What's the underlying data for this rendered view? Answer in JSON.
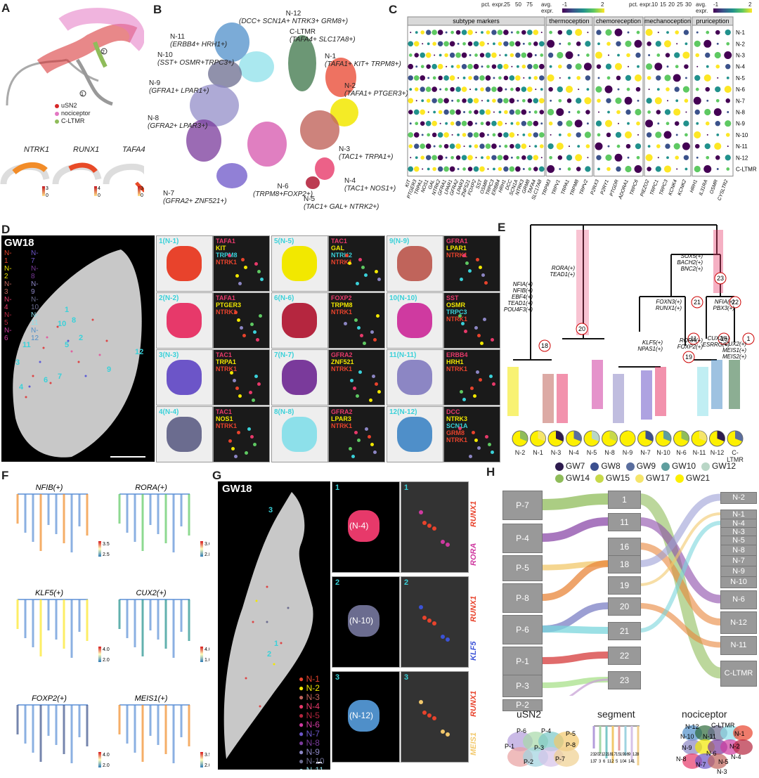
{
  "panels": {
    "A": "A",
    "B": "B",
    "C": "C",
    "D": "D",
    "E": "E",
    "F": "F",
    "G": "G",
    "H": "H"
  },
  "a": {
    "legend": [
      "uSN2",
      "nociceptor",
      "C-LTMR"
    ],
    "legend_colors": [
      "#d62728",
      "#e377c2",
      "#8fbc5a"
    ],
    "markers": [
      1,
      2
    ],
    "genes": [
      "NTRK1",
      "RUNX1",
      "TAFA4"
    ],
    "scale_max": [
      "3",
      "4",
      "3"
    ],
    "scale_min": "0"
  },
  "b": {
    "labels": {
      "n12": "N-12",
      "n12d": "(DCC+ SCN1A+ NTRK3+ GRM8+)",
      "n11": "N-11",
      "n11d": "(ERBB4+ HRH1+)",
      "n10": "N-10",
      "n10d": "(SST+ OSMR+TRPC3+)",
      "n9": "N-9",
      "n9d": "(GFRA1+ LPAR1+)",
      "n8": "N-8",
      "n8d": "(GFRA2+ LPAR3+)",
      "n7": "N-7",
      "n7d": "(GFRA2+ ZNF521+)",
      "n6": "N-6",
      "n6d": "(TRPM8+FOXP2+)",
      "n5": "N-5",
      "n5d": "(TAC1+ GAL+ NTRK2+)",
      "n4": "N-4",
      "n4d": "(TAC1+ NOS1+)",
      "n3": "N-3",
      "n3d": "(TAC1+ TRPA1+)",
      "n2": "N-2",
      "n2d": "(TAFA1+ PTGER3+)",
      "n1": "N-1",
      "n1d": "(TAFA1+ KIT+ TRPM8+)",
      "cl": "C-LTMR",
      "cld": "(TAFA4+ SLC17A8+)"
    }
  },
  "c": {
    "legend_pct_a": "pct. expr.",
    "legend_pct_vals_a": [
      "25",
      "50",
      "75"
    ],
    "legend_avg": "avg. expr.",
    "legend_avg_min": "-1",
    "legend_avg_max": "2",
    "legend_pct_b": "pct. expr.",
    "legend_pct_vals_b": [
      "10",
      "15",
      "20",
      "25",
      "30"
    ],
    "groups": [
      "subtype markers",
      "thermoception",
      "chemoreception",
      "mechanoception",
      "pruriception"
    ],
    "rows": [
      "N-1",
      "N-2",
      "N-3",
      "N-4",
      "N-5",
      "N-6",
      "N-7",
      "N-8",
      "N-9",
      "N-10",
      "N-11",
      "N-12",
      "C-LTMR"
    ],
    "genes_thermo": [
      "TRPM3",
      "TRPV1",
      "TRPA1",
      "TRPM8",
      "TRPV2"
    ],
    "genes_chemo": [
      "P2RX3",
      "P2RY1",
      "PTGDR",
      "ADORA1",
      "TRPC6"
    ],
    "genes_mech": [
      "PIEZO2",
      "TRPC1",
      "TRPC3",
      "KCNK4",
      "KCNK2"
    ],
    "genes_pru": [
      "HRH1",
      "IL31RA",
      "OSMR",
      "CYSLTR2"
    ],
    "genes_marker": [
      "KIT",
      "PTGER3",
      "TRPA1",
      "NOS1",
      "GAL",
      "NTRK2",
      "GFRA1",
      "LPAR1",
      "GFRA2",
      "LPAR3",
      "ZNF521",
      "FOXP2",
      "SST",
      "OSMR",
      "TRPC3",
      "ERBB4",
      "HRH1",
      "DCC",
      "SCN1A",
      "NTRK3",
      "GRM8",
      "TAFA4",
      "SLC17A8"
    ]
  },
  "d": {
    "title": "GW18",
    "legend_left": [
      "N-1",
      "N-2",
      "N-3",
      "N-4",
      "N-5",
      "N-6"
    ],
    "legend_right": [
      "N-7",
      "N-8",
      "N-9",
      "N-10",
      "N-11",
      "N-12"
    ],
    "tiles": [
      {
        "n": "1(N-1)",
        "m": [
          "TAFA1",
          "KIT",
          "TRPM8",
          "NTRK1"
        ]
      },
      {
        "n": "5(N-5)",
        "m": [
          "TAC1",
          "GAL",
          "NTRK2",
          "NTRK1"
        ]
      },
      {
        "n": "9(N-9)",
        "m": [
          "GFRA1",
          "LPAR1",
          "NTRK1"
        ]
      },
      {
        "n": "2(N-2)",
        "m": [
          "TAFA1",
          "PTGER3",
          "NTRK1"
        ]
      },
      {
        "n": "6(N-6)",
        "m": [
          "FOXP2",
          "TRPM8",
          "NTRK1"
        ]
      },
      {
        "n": "10(N-10)",
        "m": [
          "SST",
          "OSMR",
          "TRPC3",
          "NTRK1"
        ]
      },
      {
        "n": "3(N-3)",
        "m": [
          "TAC1",
          "TRPA1",
          "NTRK1"
        ]
      },
      {
        "n": "7(N-7)",
        "m": [
          "GFRA2",
          "ZNF521",
          "NTRK1"
        ]
      },
      {
        "n": "11(N-11)",
        "m": [
          "ERBB4",
          "HRH1",
          "NTRK1"
        ]
      },
      {
        "n": "4(N-4)",
        "m": [
          "TAC1",
          "NOS1",
          "NTRK1"
        ]
      },
      {
        "n": "8(N-8)",
        "m": [
          "GFRA2",
          "LPAR3",
          "NTRK1"
        ]
      },
      {
        "n": "12(N-12)",
        "m": [
          "DCC",
          "NTRK3",
          "SCN1A",
          "GRM8",
          "NTRK1"
        ]
      }
    ],
    "spots": [
      "1",
      "2",
      "3",
      "4",
      "5",
      "6",
      "7",
      "8",
      "9",
      "10",
      "11",
      "12"
    ]
  },
  "e": {
    "annot": {
      "a18": "NFIA(+)",
      "b18": "NFIB(+)",
      "c18": "EBF4(+)",
      "d18": "TEAD1(+)",
      "e18": "POU4F3(+)",
      "a20": "RORA(+)",
      "b20": "TEAD1(+)",
      "a23": "SOX5(+)",
      "b23": "BACH2(+)",
      "c23": "BNC2(+)",
      "a21": "FOXN3(+)",
      "b21": "RUNX1(+)",
      "a22": "NFIA(+)",
      "b22": "PBX3(+)",
      "a19": "KLF5(+)",
      "b19": "NPAS1(+)",
      "a11": "RORA(+)",
      "b11": "FOXP2(+)",
      "a16": "CUX2(+)",
      "b16": "ESRRG(+)",
      "a1": "CUX2(+)",
      "b1": "MEIS1(+)",
      "c1": "MEIS2(+)"
    },
    "nodes": [
      "18",
      "20",
      "23",
      "21",
      "22",
      "19",
      "11",
      "16",
      "1"
    ],
    "pie_labels": [
      "N-2",
      "N-1",
      "N-3",
      "N-4",
      "N-5",
      "N-8",
      "N-9",
      "N-7",
      "N-10",
      "N-6",
      "N-11",
      "N-12",
      "C-LTMR"
    ],
    "legend": [
      "GW7",
      "GW8",
      "GW9",
      "GW10",
      "GW12",
      "GW14",
      "GW15",
      "GW17",
      "GW21"
    ],
    "legend_colors": [
      "#2d1b4e",
      "#3b4f8f",
      "#5a6e9e",
      "#5f9e9e",
      "#b9d6c6",
      "#8fbc5a",
      "#c7d94a",
      "#f5e56b",
      "#fdf000"
    ]
  },
  "f": {
    "titles": [
      "NFIB(+)",
      "RORA(+)",
      "KLF5(+)",
      "CUX2(+)",
      "FOXP2(+)",
      "MEIS1(+)"
    ],
    "scales": [
      [
        "3.5",
        "2.5"
      ],
      [
        "3.6",
        "2.8"
      ],
      [
        "4.0",
        "2.0"
      ],
      [
        "4.0",
        "1.0"
      ],
      [
        "4.0",
        "2.0"
      ],
      [
        "3.5",
        "2.0"
      ]
    ]
  },
  "g": {
    "title": "GW18",
    "legend": [
      "N-1",
      "N-2",
      "N-3",
      "N-4",
      "N-5",
      "N-6",
      "N-7",
      "N-8",
      "N-9",
      "N-10",
      "N-11",
      "N-12"
    ],
    "legend_colors": [
      "#e8432c",
      "#f2e800",
      "#c0645b",
      "#e7396a",
      "#b5263f",
      "#cf3aa0",
      "#6c55c8",
      "#7a3a9b",
      "#8c86c4",
      "#6b6c8f",
      "#8de0ea",
      "#4f8fc9"
    ],
    "tiles": [
      {
        "n": "1",
        "lbl": "(N-4)"
      },
      {
        "n": "2",
        "lbl": "(N-10)"
      },
      {
        "n": "3",
        "lbl": "(N-12)"
      }
    ],
    "right_labels": [
      [
        "RORA",
        "RUNX1"
      ],
      [
        "KLF5",
        "RUNX1"
      ],
      [
        "MEIS1",
        "RUNX1"
      ]
    ],
    "spots": [
      "3",
      "1",
      "2"
    ]
  },
  "h": {
    "p": [
      "P-7",
      "P-4",
      "P-5",
      "P-8",
      "P-6",
      "P-1",
      "P-3",
      "P-2"
    ],
    "seg": [
      "1",
      "11",
      "16",
      "18",
      "19",
      "20",
      "21",
      "22",
      "23"
    ],
    "n": [
      "N-2",
      "N-1",
      "N-4",
      "N-3",
      "N-5",
      "N-8",
      "N-7",
      "N-9",
      "N-10",
      "N-6",
      "N-12",
      "N-11",
      "C-LTMR"
    ],
    "sub_titles": [
      "uSN2",
      "segment",
      "nociceptor"
    ],
    "usn2_labels": [
      "P-6",
      "P-4",
      "P-5",
      "P-1",
      "P-3",
      "P-8",
      "P-7",
      "P-2"
    ],
    "seg_nums": [
      "23",
      "20",
      "21",
      "22",
      "18",
      "17",
      "15",
      "19",
      "16",
      "9",
      "12",
      "8",
      "13",
      "7",
      "3",
      "6",
      "11",
      "2",
      "5",
      "10",
      "4",
      "14",
      "1"
    ],
    "noci_labels": [
      "N-12",
      "C-LTMR",
      "N-10",
      "N-11",
      "N-1",
      "N-9",
      "N-2",
      "N-8",
      "N-6",
      "N-5",
      "N-4",
      "N-7",
      "N-3"
    ]
  }
}
